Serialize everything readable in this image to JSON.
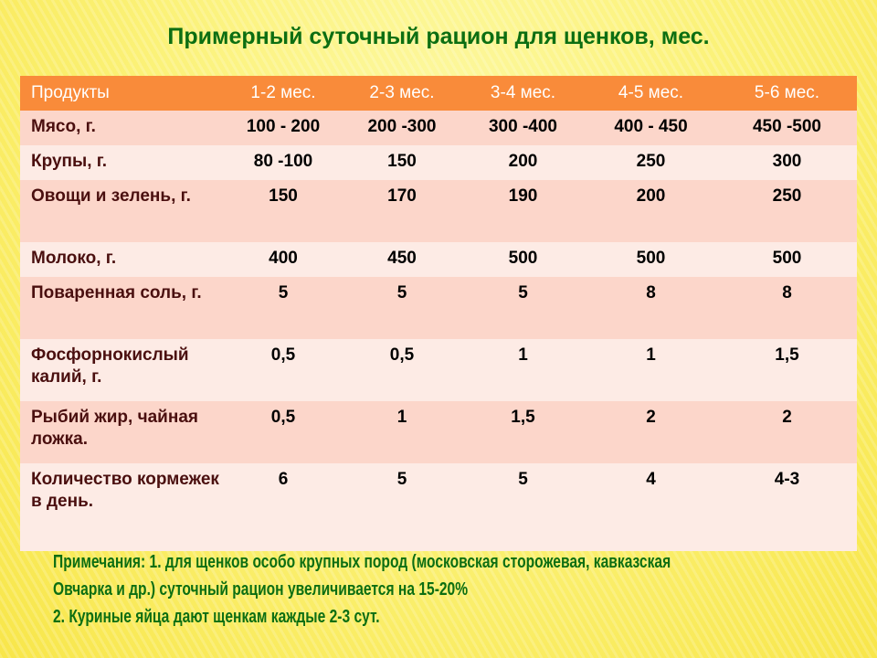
{
  "title": "Примерный суточный рацион для щенков, мес.",
  "table": {
    "headers": [
      "Продукты",
      "1-2 мес.",
      "2-3 мес.",
      "3-4 мес.",
      "4-5 мес.",
      "5-6 мес."
    ],
    "rows": [
      [
        "Мясо, г.",
        "100 - 200",
        "200 -300",
        "300 -400",
        "400 - 450",
        "450 -500"
      ],
      [
        "Крупы, г.",
        "80 -100",
        "150",
        "200",
        "250",
        "300"
      ],
      [
        "Овощи и зелень, г.",
        "150",
        "170",
        "190",
        "200",
        "250"
      ],
      [
        "Молоко, г.",
        "400",
        "450",
        "500",
        "500",
        "500"
      ],
      [
        "Поваренная соль, г.",
        "5",
        "5",
        "5",
        "8",
        "8"
      ],
      [
        "Фосфорнокислый калий, г.",
        "0,5",
        "0,5",
        "1",
        "1",
        "1,5"
      ],
      [
        "Рыбий жир, чайная ложка.",
        "0,5",
        "1",
        "1,5",
        "2",
        "2"
      ],
      [
        "Количество кормежек в день.",
        "6",
        "5",
        "5",
        "4",
        "4-3"
      ]
    ]
  },
  "notes": [
    "Примечания: 1. для щенков особо крупных пород (московская сторожевая, кавказская",
    "Овчарка  и др.) суточный рацион увеличивается на 15-20%",
    "2. Куриные яйца дают щенкам каждые 2-3 сут."
  ],
  "colors": {
    "title": "#0c6e12",
    "header": "#f98b3a",
    "row_odd": "#fcd6ca",
    "row_even": "#fdebe5"
  }
}
